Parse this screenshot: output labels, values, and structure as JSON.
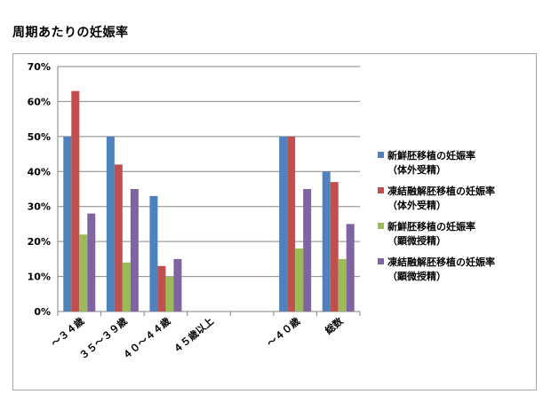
{
  "page": {
    "title": "周期あたりの妊娠率"
  },
  "chart_data": {
    "type": "bar",
    "title": "",
    "xlabel": "",
    "ylabel": "",
    "ylim": [
      0,
      70
    ],
    "yticks": [
      0,
      10,
      20,
      30,
      40,
      50,
      60,
      70
    ],
    "ytick_labels": [
      "0%",
      "10%",
      "20%",
      "30%",
      "40%",
      "50%",
      "60%",
      "70%"
    ],
    "grid": true,
    "legend_position": "right",
    "categories": [
      "～３４歳",
      "３５～３９歳",
      "４０～４４歳",
      "４５歳以上",
      "",
      "～４０歳",
      "総数"
    ],
    "series": [
      {
        "name": "新鮮胚移植の妊娠率",
        "name_line2": "（体外受精）",
        "color": "#4f81bd",
        "values": [
          50,
          50,
          33,
          0,
          null,
          50,
          40
        ]
      },
      {
        "name": "凍結融解胚移植の妊娠率",
        "name_line2": "（体外受精）",
        "color": "#c0504d",
        "values": [
          63,
          42,
          13,
          0,
          null,
          50,
          37
        ]
      },
      {
        "name": "新鮮胚移植の妊娠率",
        "name_line2": "（顕微授精）",
        "color": "#9bbb59",
        "values": [
          22,
          14,
          10,
          0,
          null,
          18,
          15
        ]
      },
      {
        "name": "凍結融解胚移植の妊娠率",
        "name_line2": "（顕微授精）",
        "color": "#8064a2",
        "values": [
          28,
          35,
          15,
          0,
          null,
          35,
          25
        ]
      }
    ]
  }
}
